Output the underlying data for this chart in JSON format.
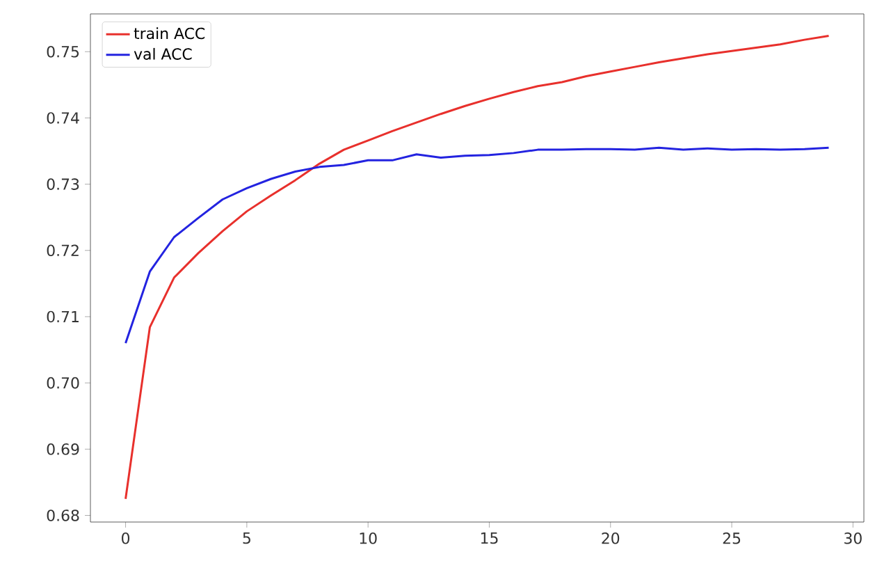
{
  "chart_data": {
    "type": "line",
    "x": [
      0,
      1,
      2,
      3,
      4,
      5,
      6,
      7,
      8,
      9,
      10,
      11,
      12,
      13,
      14,
      15,
      16,
      17,
      18,
      19,
      20,
      21,
      22,
      23,
      24,
      25,
      26,
      27,
      28,
      29
    ],
    "series": [
      {
        "name": "train ACC",
        "color": "#e8302c",
        "values": [
          0.6825,
          0.7084,
          0.7159,
          0.7196,
          0.7229,
          0.7259,
          0.7283,
          0.7306,
          0.7331,
          0.7352,
          0.7366,
          0.738,
          0.7393,
          0.7406,
          0.7418,
          0.7429,
          0.7439,
          0.7448,
          0.7454,
          0.7463,
          0.747,
          0.7477,
          0.7484,
          0.749,
          0.7496,
          0.7501,
          0.7506,
          0.7511,
          0.7518,
          0.7524
        ]
      },
      {
        "name": "val ACC",
        "color": "#2323e0",
        "values": [
          0.706,
          0.7168,
          0.722,
          0.7249,
          0.7277,
          0.7294,
          0.7308,
          0.7319,
          0.7326,
          0.7329,
          0.7336,
          0.7336,
          0.7345,
          0.734,
          0.7343,
          0.7344,
          0.7347,
          0.7352,
          0.7352,
          0.7353,
          0.7353,
          0.7352,
          0.7355,
          0.7352,
          0.7354,
          0.7352,
          0.7353,
          0.7352,
          0.7353,
          0.7355
        ]
      }
    ],
    "xlim": [
      -1.45,
      30.45
    ],
    "ylim": [
      0.679,
      0.7557
    ],
    "xticks": [
      0,
      5,
      10,
      15,
      20,
      25,
      30
    ],
    "yticks": [
      0.68,
      0.69,
      {
        "value": 0.7,
        "label": "0.70"
      },
      0.71,
      0.72,
      0.73,
      0.74,
      0.75
    ],
    "legend": "top left",
    "grid": false
  }
}
